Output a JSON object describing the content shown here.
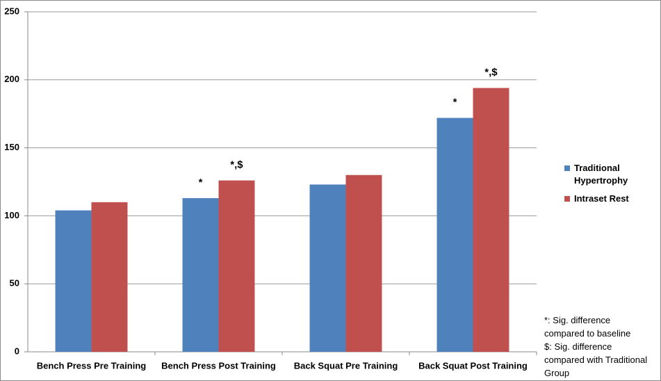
{
  "chart_data": {
    "type": "bar",
    "categories": [
      "Bench Press Pre Training",
      "Bench Press Post Training",
      "Back Squat Pre Training",
      "Back Squat Post Training"
    ],
    "series": [
      {
        "name": "Traditional Hypertrophy",
        "color": "#4f81bd",
        "values": [
          104,
          113,
          123,
          172
        ],
        "annotations": [
          null,
          "*",
          null,
          "*"
        ]
      },
      {
        "name": "Intraset Rest",
        "color": "#c0504d",
        "values": [
          110,
          126,
          130,
          194
        ],
        "annotations": [
          null,
          "*,$",
          null,
          "*,$"
        ]
      }
    ],
    "ylim": [
      0,
      250
    ],
    "yticks": [
      0,
      50,
      100,
      150,
      200,
      250
    ],
    "grid": true,
    "legend": "right",
    "notes": [
      "*: Sig. difference compared to baseline",
      "$: Sig. difference compared with Traditional Group"
    ]
  }
}
